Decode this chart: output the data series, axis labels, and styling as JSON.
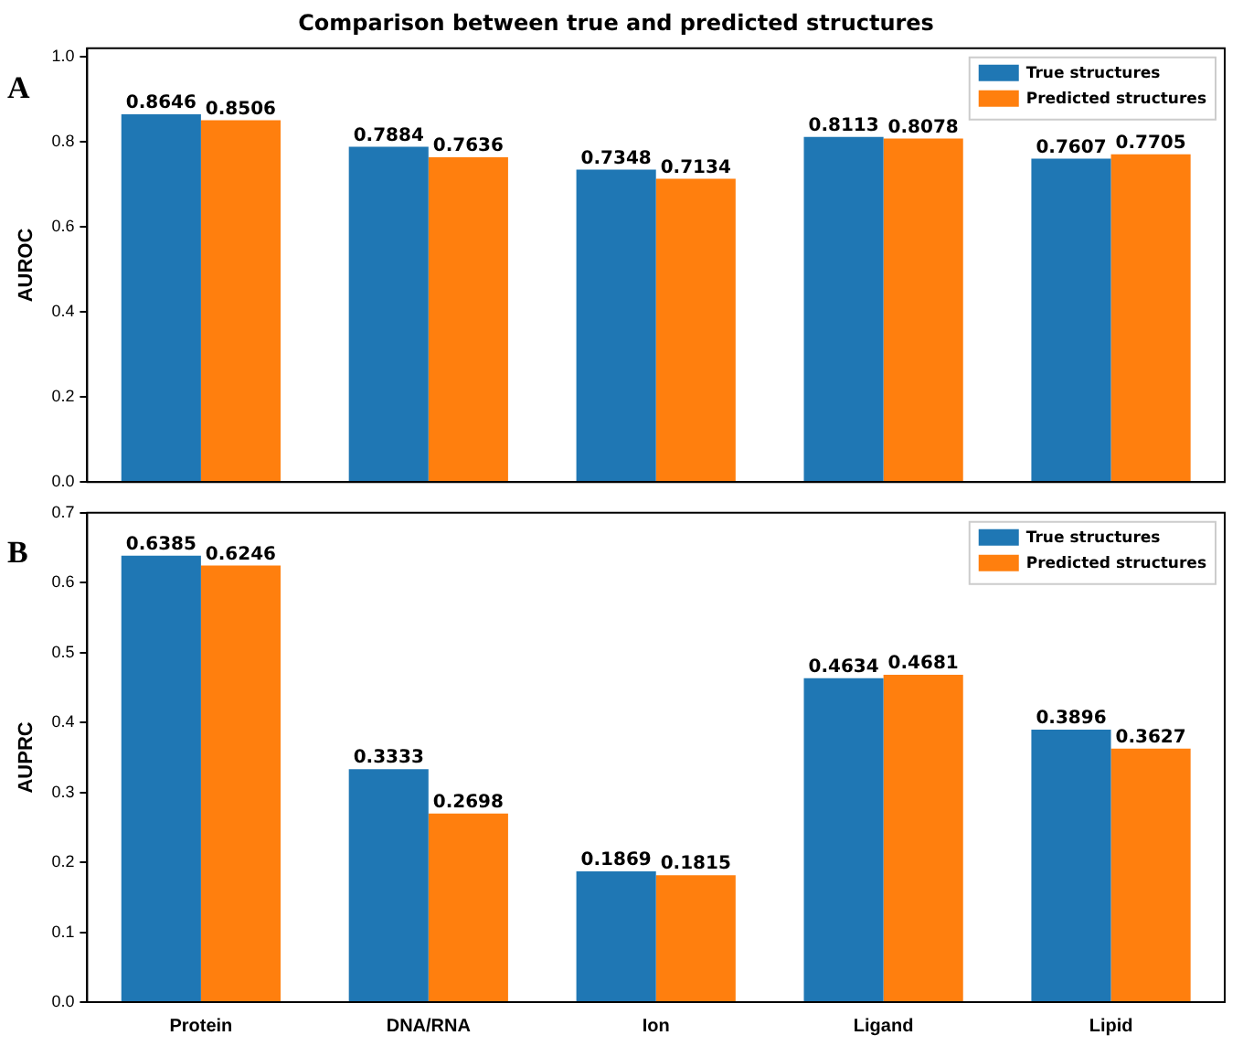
{
  "chart_data": [
    {
      "type": "bar",
      "title": "Comparison between true and predicted structures",
      "ylabel": "AUROC",
      "categories": [
        null,
        null,
        null,
        null,
        null
      ],
      "series": [
        {
          "name": "True structures",
          "color": "#1f77b4",
          "values": [
            0.8646,
            0.7884,
            0.7348,
            0.8113,
            0.7607
          ]
        },
        {
          "name": "Predicted structures",
          "color": "#ff7f0e",
          "values": [
            0.8506,
            0.7636,
            0.7134,
            0.8078,
            0.7705
          ]
        }
      ],
      "ylim": [
        0,
        1.02
      ],
      "yticks": [
        {
          "value": 0,
          "label": "0.0"
        },
        {
          "value": 0.2,
          "label": "0.2"
        },
        {
          "value": 0.4,
          "label": "0.4"
        },
        {
          "value": 0.6,
          "label": "0.6"
        },
        {
          "value": 0.8,
          "label": "0.8"
        },
        {
          "value": 1,
          "label": "1.0"
        }
      ],
      "data_labels": true,
      "legend": "top right",
      "grid": false,
      "tick_labels": "y",
      "annotations": [
        "A"
      ]
    },
    {
      "type": "bar",
      "ylabel": "AUPRC",
      "categories": [
        "Protein",
        "DNA/RNA",
        "Ion",
        "Ligand",
        "Lipid"
      ],
      "series": [
        {
          "name": "True structures",
          "color": "#1f77b4",
          "values": [
            0.6385,
            0.3333,
            0.1869,
            0.4634,
            0.3896
          ]
        },
        {
          "name": "Predicted structures",
          "color": "#ff7f0e",
          "values": [
            0.6246,
            0.2698,
            0.1815,
            0.4681,
            0.3627
          ]
        }
      ],
      "ylim": [
        0,
        0.7
      ],
      "yticks": [
        {
          "value": 0,
          "label": "0.0"
        },
        {
          "value": 0.1,
          "label": "0.1"
        },
        {
          "value": 0.2,
          "label": "0.2"
        },
        {
          "value": 0.3,
          "label": "0.3"
        },
        {
          "value": 0.4,
          "label": "0.4"
        },
        {
          "value": 0.5,
          "label": "0.5"
        },
        {
          "value": 0.6,
          "label": "0.6"
        },
        {
          "value": 0.7,
          "label": "0.7"
        }
      ],
      "data_labels": true,
      "legend": "top right",
      "grid": false,
      "annotations": [
        "B"
      ]
    }
  ]
}
